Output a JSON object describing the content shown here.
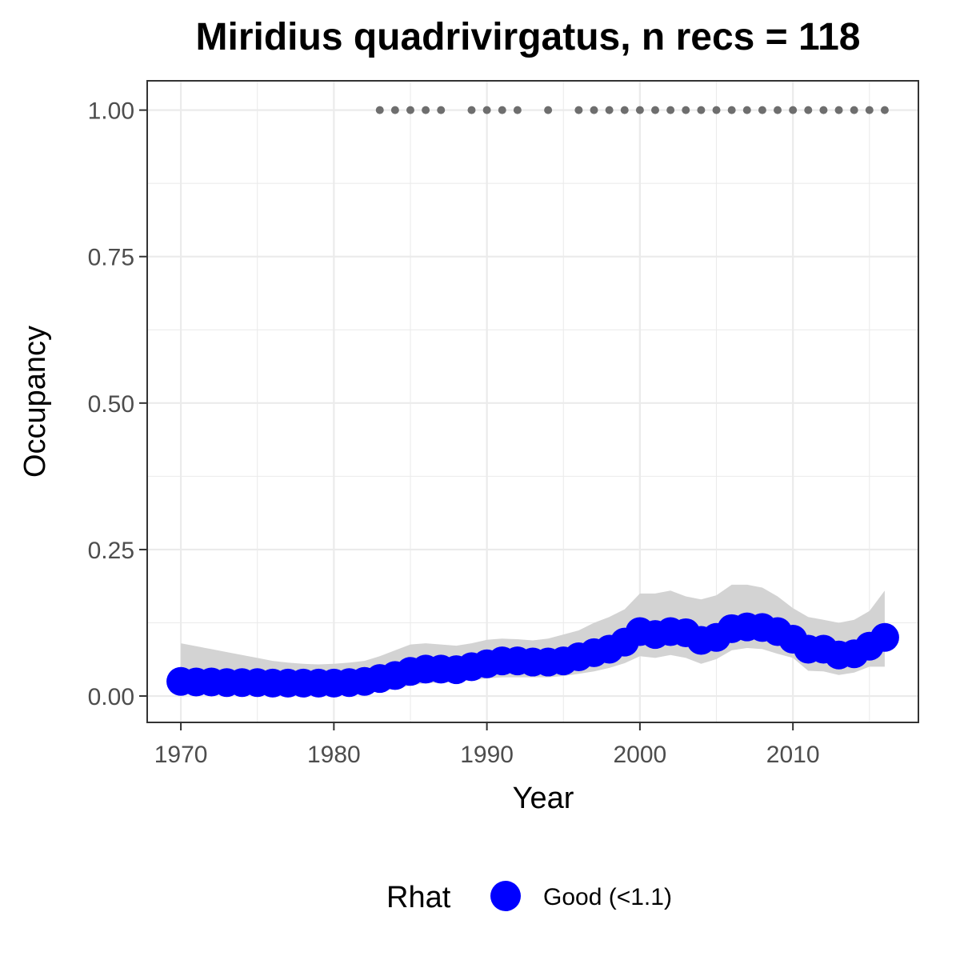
{
  "chart_data": {
    "type": "line",
    "title": "Miridius quadrivirgatus, n recs = 118",
    "xlabel": "Year",
    "ylabel": "Occupancy",
    "xlim": [
      1967.8,
      2018.2
    ],
    "ylim": [
      -0.045,
      1.05
    ],
    "x_ticks": [
      1970,
      1980,
      1990,
      2000,
      2010
    ],
    "x_tick_labels": [
      "1970",
      "1980",
      "1990",
      "2000",
      "2010"
    ],
    "y_ticks": [
      0,
      0.25,
      0.5,
      0.75,
      1.0
    ],
    "y_tick_labels": [
      "0.00",
      "0.25",
      "0.50",
      "0.75",
      "1.00"
    ],
    "grid": true,
    "legend": {
      "title": "Rhat",
      "position": "bottom",
      "entries": [
        {
          "label": "Good (<1.1)",
          "color": "#0000ff"
        }
      ]
    },
    "series": [
      {
        "name": "Good (<1.1)",
        "color": "#0000ff",
        "x": [
          1970,
          1971,
          1972,
          1973,
          1974,
          1975,
          1976,
          1977,
          1978,
          1979,
          1980,
          1981,
          1982,
          1983,
          1984,
          1985,
          1986,
          1987,
          1988,
          1989,
          1990,
          1991,
          1992,
          1993,
          1994,
          1995,
          1996,
          1997,
          1998,
          1999,
          2000,
          2001,
          2002,
          2003,
          2004,
          2005,
          2006,
          2007,
          2008,
          2009,
          2010,
          2011,
          2012,
          2013,
          2014,
          2015,
          2016
        ],
        "y": [
          0.025,
          0.024,
          0.024,
          0.023,
          0.023,
          0.023,
          0.022,
          0.022,
          0.022,
          0.022,
          0.022,
          0.023,
          0.025,
          0.03,
          0.035,
          0.042,
          0.046,
          0.046,
          0.045,
          0.05,
          0.055,
          0.06,
          0.06,
          0.058,
          0.058,
          0.06,
          0.067,
          0.074,
          0.08,
          0.092,
          0.11,
          0.105,
          0.11,
          0.108,
          0.095,
          0.1,
          0.115,
          0.118,
          0.117,
          0.11,
          0.097,
          0.08,
          0.08,
          0.07,
          0.072,
          0.085,
          0.1
        ],
        "lower": [
          0.005,
          0.005,
          0.005,
          0.005,
          0.005,
          0.005,
          0.005,
          0.005,
          0.005,
          0.005,
          0.005,
          0.005,
          0.006,
          0.008,
          0.012,
          0.018,
          0.022,
          0.023,
          0.024,
          0.027,
          0.03,
          0.032,
          0.032,
          0.032,
          0.032,
          0.034,
          0.038,
          0.042,
          0.048,
          0.056,
          0.068,
          0.065,
          0.07,
          0.065,
          0.055,
          0.063,
          0.078,
          0.082,
          0.08,
          0.072,
          0.065,
          0.043,
          0.042,
          0.036,
          0.04,
          0.05,
          0.05
        ],
        "upper": [
          0.09,
          0.085,
          0.08,
          0.075,
          0.07,
          0.065,
          0.06,
          0.057,
          0.055,
          0.054,
          0.055,
          0.057,
          0.06,
          0.068,
          0.078,
          0.088,
          0.09,
          0.088,
          0.086,
          0.09,
          0.096,
          0.098,
          0.097,
          0.095,
          0.098,
          0.105,
          0.112,
          0.125,
          0.135,
          0.148,
          0.175,
          0.175,
          0.18,
          0.17,
          0.165,
          0.172,
          0.19,
          0.19,
          0.185,
          0.17,
          0.15,
          0.135,
          0.13,
          0.125,
          0.13,
          0.145,
          0.18
        ]
      }
    ],
    "record_years": {
      "color": "#6e6e6e",
      "y": 1.0,
      "x": [
        1983,
        1984,
        1985,
        1986,
        1987,
        1989,
        1990,
        1991,
        1992,
        1994,
        1996,
        1997,
        1998,
        1999,
        2000,
        2001,
        2002,
        2003,
        2004,
        2005,
        2006,
        2007,
        2008,
        2009,
        2010,
        2011,
        2012,
        2013,
        2014,
        2015,
        2016
      ]
    },
    "ribbon_color": "#d3d3d3"
  }
}
